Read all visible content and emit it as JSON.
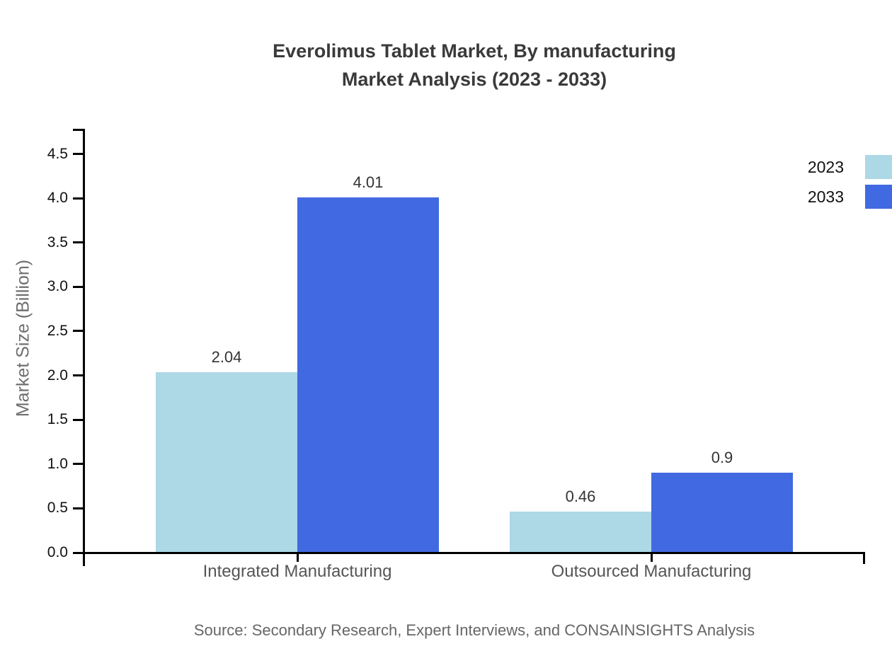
{
  "title": {
    "line1": "Everolimus Tablet Market, By manufacturing",
    "line2": "Market Analysis (2023 - 2033)"
  },
  "chart_data": {
    "type": "bar",
    "categories": [
      "Integrated Manufacturing",
      "Outsourced Manufacturing"
    ],
    "series": [
      {
        "name": "2023",
        "color": "#ADD8E6",
        "values": [
          2.04,
          0.46
        ],
        "labels": [
          "2.04",
          "0.46"
        ]
      },
      {
        "name": "2033",
        "color": "#4169E1",
        "values": [
          4.01,
          0.9
        ],
        "labels": [
          "4.01",
          "0.9"
        ]
      }
    ],
    "xlabel": "",
    "ylabel": "Market Size (Billion)",
    "ylim": [
      0,
      4.8
    ],
    "yticks": [
      "0.0",
      "0.5",
      "1.0",
      "1.5",
      "2.0",
      "2.5",
      "3.0",
      "3.5",
      "4.0",
      "4.5"
    ],
    "grid": false,
    "legend_position": "top-right",
    "axis_color": "#000000"
  },
  "colors": {
    "title_text": "#3a3a3a",
    "tick_text": "#111111",
    "category_text": "#555555",
    "muted_text": "#6e6e6e",
    "source_text": "#666666",
    "series_2023": "#ADD8E6",
    "series_2033": "#4169E1"
  },
  "source": "Source: Secondary Research, Expert Interviews, and CONSAINSIGHTS Analysis"
}
